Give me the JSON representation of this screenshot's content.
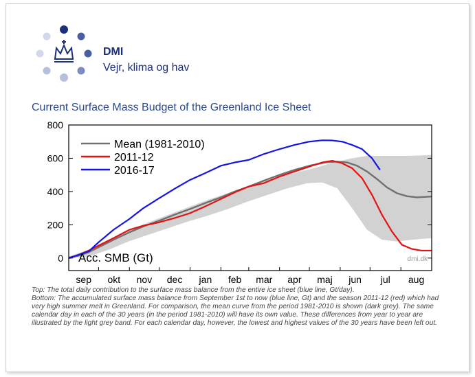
{
  "brand": {
    "name": "DMI",
    "tagline": "Vejr, klima og hav",
    "dot_colors": [
      "#1b2f7a",
      "#4a5fa0",
      "#7d8cbf",
      "#b6bfdc",
      "#d3d9ea"
    ]
  },
  "chart_title": "Current Surface Mass Budget of the Greenland Ice Sheet",
  "chart_data": {
    "type": "line",
    "title": "Current Surface Mass Budget of the Greenland Ice Sheet",
    "ylabel": "Acc. SMB (Gt)",
    "xlabel": "",
    "ylim": [
      -75,
      800
    ],
    "yticks": [
      0,
      200,
      400,
      600,
      800
    ],
    "xlim": [
      0,
      365
    ],
    "month_labels": [
      "sep",
      "okt",
      "nov",
      "dec",
      "jan",
      "feb",
      "mar",
      "apr",
      "maj",
      "jun",
      "jul",
      "aug"
    ],
    "month_starts": [
      0,
      30,
      61,
      91,
      122,
      153,
      181,
      212,
      242,
      273,
      303,
      334
    ],
    "grid": false,
    "legend_position": "top-left",
    "credit": "dmi.dk",
    "band": {
      "name": "",
      "x": [
        0,
        20,
        40,
        60,
        80,
        100,
        120,
        140,
        160,
        180,
        200,
        220,
        240,
        255,
        270,
        285,
        300,
        315,
        330,
        345,
        365
      ],
      "upper": [
        10,
        50,
        110,
        160,
        215,
        260,
        305,
        350,
        390,
        430,
        470,
        500,
        530,
        555,
        580,
        600,
        615,
        615,
        615,
        615,
        620
      ],
      "lower": [
        0,
        10,
        50,
        100,
        140,
        180,
        220,
        255,
        295,
        340,
        380,
        420,
        450,
        455,
        420,
        300,
        170,
        110,
        100,
        110,
        120
      ]
    },
    "series": [
      {
        "name": "Mean (1981-2010)",
        "color": "#707070",
        "x": [
          0,
          10,
          20,
          30,
          45,
          61,
          75,
          91,
          106,
          122,
          137,
          153,
          167,
          181,
          196,
          212,
          227,
          242,
          258,
          270,
          280,
          290,
          300,
          310,
          320,
          330,
          340,
          350,
          365
        ],
        "y": [
          0,
          15,
          35,
          65,
          110,
          155,
          190,
          225,
          260,
          295,
          330,
          365,
          400,
          430,
          465,
          500,
          530,
          555,
          575,
          580,
          575,
          555,
          520,
          475,
          425,
          390,
          372,
          365,
          370
        ]
      },
      {
        "name": "2011-12",
        "color": "#e41212",
        "x": [
          0,
          10,
          20,
          30,
          45,
          61,
          75,
          91,
          106,
          122,
          137,
          153,
          167,
          181,
          196,
          212,
          227,
          242,
          255,
          265,
          275,
          285,
          295,
          305,
          315,
          325,
          335,
          345,
          355,
          365
        ],
        "y": [
          0,
          20,
          45,
          75,
          120,
          170,
          195,
          215,
          240,
          270,
          310,
          355,
          395,
          430,
          450,
          490,
          520,
          550,
          575,
          585,
          570,
          540,
          480,
          380,
          260,
          160,
          80,
          55,
          45,
          45
        ]
      },
      {
        "name": "2016-17",
        "color": "#1414e6",
        "x": [
          0,
          10,
          20,
          30,
          45,
          61,
          75,
          91,
          106,
          122,
          137,
          153,
          167,
          181,
          196,
          212,
          227,
          242,
          255,
          265,
          275,
          285,
          295,
          305,
          313
        ],
        "y": [
          0,
          20,
          40,
          95,
          170,
          235,
          300,
          360,
          415,
          470,
          510,
          555,
          575,
          590,
          625,
          655,
          680,
          700,
          708,
          707,
          700,
          680,
          655,
          600,
          530
        ]
      }
    ]
  },
  "caption": {
    "top": "Top: The total daily contribution to the surface mass balance from the entire ice sheet (blue line, Gt/day).",
    "bottom": "Bottom: The accumulated surface mass balance from September 1st to now (blue line, Gt) and the season 2011-12 (red) which had very high summer melt in Greenland. For comparison, the mean curve from the period 1981-2010 is shown (dark grey). The same calendar day in each of the 30 years (in the period 1981-2010) will have its own value. These differences from year to year are illustrated by the light grey band. For each calendar day, however, the lowest and highest values of the 30 years have been left out."
  }
}
